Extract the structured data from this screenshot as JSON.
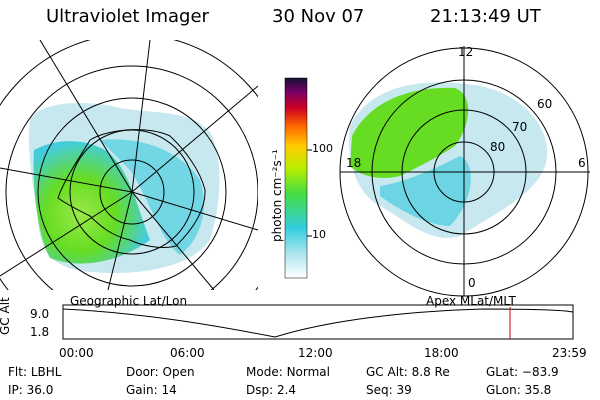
{
  "header": {
    "instrument": "Ultraviolet Imager",
    "date": "30 Nov 07",
    "time": "21:13:49 UT"
  },
  "colorbar": {
    "unit_label": "photon cm⁻²s⁻¹",
    "ticks": [
      "100",
      "10"
    ]
  },
  "geo_panel": {
    "label": "Geographic Lat/Lon",
    "map_feature": "Antarctica coastline"
  },
  "apex_panel": {
    "label": "Apex MLat/MLT",
    "mlt_labels": [
      "12",
      "18",
      "6",
      "0"
    ],
    "mlat_labels": [
      "60",
      "70",
      "80"
    ]
  },
  "altitude_plot": {
    "ylabel": "GC Alt",
    "y_ticks": [
      "9.0",
      "1.8"
    ],
    "x_ticks": [
      "00:00",
      "06:00",
      "12:00",
      "18:00",
      "23:59"
    ],
    "current_marker_time": "21:13:49",
    "marker_color": "#cc0000"
  },
  "footer": {
    "filter_label": "Flt:",
    "filter_value": "LBHL",
    "door_label": "Door:",
    "door_value": "Open",
    "mode_label": "Mode:",
    "mode_value": "Normal",
    "gcalt_label": "GC Alt:",
    "gcalt_value": "8.8 Re",
    "glat_label": "GLat:",
    "glat_value": "−83.9",
    "ip_label": "IP:",
    "ip_value": "36.0",
    "gain_label": "Gain:",
    "gain_value": "14",
    "dsp_label": "Dsp:",
    "dsp_value": "2.4",
    "seq_label": "Seq:",
    "seq_value": "39",
    "glon_label": "GLon:",
    "glon_value": "35.8"
  },
  "colors": {
    "aurora_green": "#66dd22",
    "aurora_cyan": "#44ccdd",
    "aurora_pale": "#c8e8f0",
    "line": "#000000"
  }
}
